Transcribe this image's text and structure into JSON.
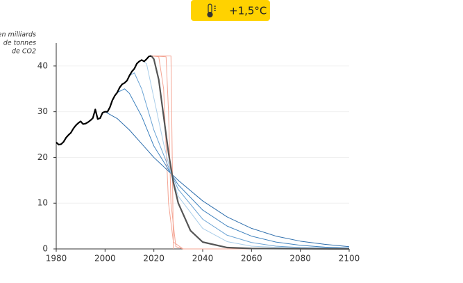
{
  "chart_data": {
    "type": "line",
    "badge": "+1,5°C",
    "y_label_lines": [
      "en milliards",
      "de tonnes",
      "de CO2"
    ],
    "xlim": [
      1980,
      2100
    ],
    "xticks": [
      1980,
      2000,
      2020,
      2040,
      2060,
      2080,
      2100
    ],
    "ylim": [
      0,
      45
    ],
    "yticks": [
      0,
      10,
      20,
      30,
      40
    ],
    "grid": true,
    "series": [
      {
        "color": "#f4a493",
        "x": [
          2019,
          2022,
          2024,
          2026,
          2028,
          2032,
          2100
        ],
        "values": [
          42.2,
          42,
          35,
          10,
          1.5,
          0,
          0
        ]
      },
      {
        "color": "#f4a493",
        "x": [
          2019,
          2025,
          2026,
          2027,
          2029,
          2032
        ],
        "values": [
          42.2,
          42,
          30,
          10,
          0.5,
          0
        ]
      },
      {
        "color": "#f4a493",
        "x": [
          2019,
          2027,
          2028
        ],
        "values": [
          42.2,
          42.2,
          0
        ]
      },
      {
        "color": "#2f6fad",
        "x": [
          2000,
          2005,
          2010,
          2015,
          2020,
          2027,
          2030,
          2040,
          2050,
          2060,
          2070,
          2080,
          2090,
          2100
        ],
        "values": [
          30,
          28.5,
          26,
          23,
          20,
          16.5,
          15,
          10.5,
          7,
          4.5,
          2.8,
          1.7,
          1,
          0.5
        ]
      },
      {
        "color": "#3f82be",
        "x": [
          2005,
          2008,
          2010,
          2015,
          2020,
          2027,
          2030,
          2040,
          2050,
          2060,
          2070,
          2080,
          2090,
          2100
        ],
        "values": [
          34.2,
          35,
          34,
          29,
          22.5,
          16.5,
          14,
          8.5,
          5,
          2.8,
          1.5,
          0.8,
          0.4,
          0.2
        ]
      },
      {
        "color": "#6aa3d4",
        "x": [
          2010,
          2012,
          2015,
          2020,
          2027,
          2030,
          2040,
          2050,
          2060,
          2070,
          2080,
          2100
        ],
        "values": [
          37.9,
          38.5,
          35,
          26,
          16.5,
          13,
          6.5,
          3,
          1.4,
          0.6,
          0.3,
          0.1
        ]
      },
      {
        "color": "#a9cde9",
        "x": [
          2015,
          2017,
          2020,
          2024,
          2027,
          2030,
          2040,
          2050,
          2060,
          2080,
          2100
        ],
        "values": [
          41.3,
          40.5,
          33,
          23,
          16.5,
          11.5,
          4.5,
          1.6,
          0.6,
          0.1,
          0
        ]
      },
      {
        "color": "#555555",
        "x": [
          2019,
          2020,
          2022,
          2024,
          2026,
          2028,
          2030,
          2035,
          2040,
          2050,
          2060,
          2100
        ],
        "values": [
          42.2,
          41.5,
          37,
          29,
          21,
          14.5,
          10,
          4,
          1.5,
          0.3,
          0.1,
          0
        ]
      },
      {
        "color": "#000000",
        "x": [
          1980,
          1981,
          1982,
          1983,
          1984,
          1985,
          1986,
          1987,
          1988,
          1989,
          1990,
          1991,
          1992,
          1993,
          1994,
          1995,
          1996,
          1997,
          1998,
          1999,
          2000,
          2001,
          2002,
          2003,
          2004,
          2005,
          2006,
          2007,
          2008,
          2009,
          2010,
          2011,
          2012,
          2013,
          2014,
          2015,
          2016,
          2017,
          2018,
          2019
        ],
        "values": [
          23.3,
          22.8,
          22.9,
          23.4,
          24.3,
          24.9,
          25.4,
          26.3,
          27,
          27.5,
          27.9,
          27.3,
          27.4,
          27.7,
          28.1,
          28.6,
          30.5,
          28.4,
          28.6,
          29.8,
          30,
          30,
          31,
          32.5,
          33.5,
          34.2,
          35.3,
          36,
          36.3,
          36.8,
          37.9,
          38.8,
          39.4,
          40.5,
          41,
          41.3,
          41,
          41.5,
          42.1,
          42.2
        ]
      }
    ]
  }
}
